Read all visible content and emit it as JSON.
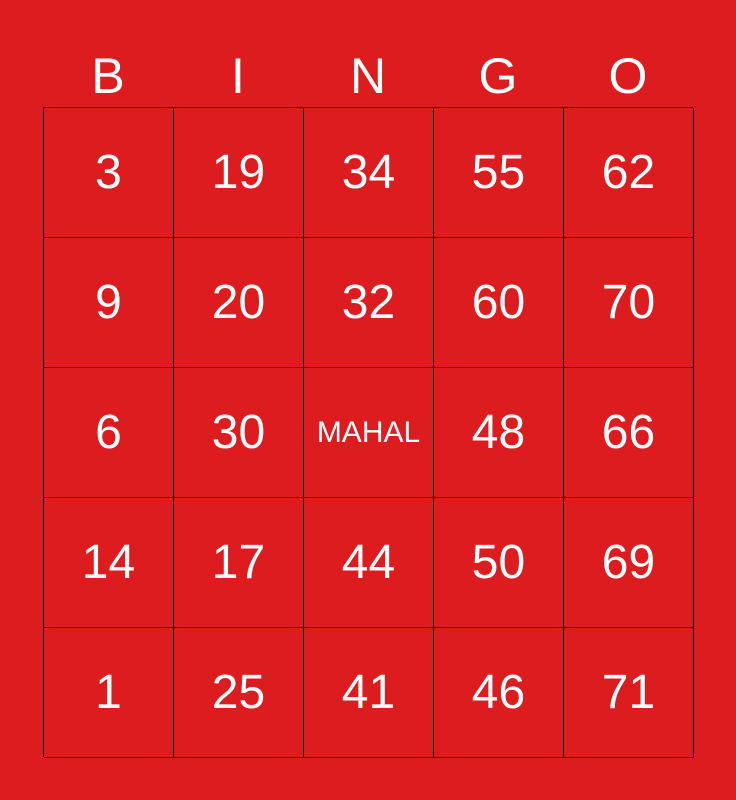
{
  "header": [
    "B",
    "I",
    "N",
    "G",
    "O"
  ],
  "colors": {
    "background": "#DC1C1E",
    "text": "#FFFFFF",
    "grid_lines": "#000000"
  },
  "rows": [
    [
      "3",
      "19",
      "34",
      "55",
      "62"
    ],
    [
      "9",
      "20",
      "32",
      "60",
      "70"
    ],
    [
      "6",
      "30",
      "MAHAL",
      "48",
      "66"
    ],
    [
      "14",
      "17",
      "44",
      "50",
      "69"
    ],
    [
      "1",
      "25",
      "41",
      "46",
      "71"
    ]
  ]
}
